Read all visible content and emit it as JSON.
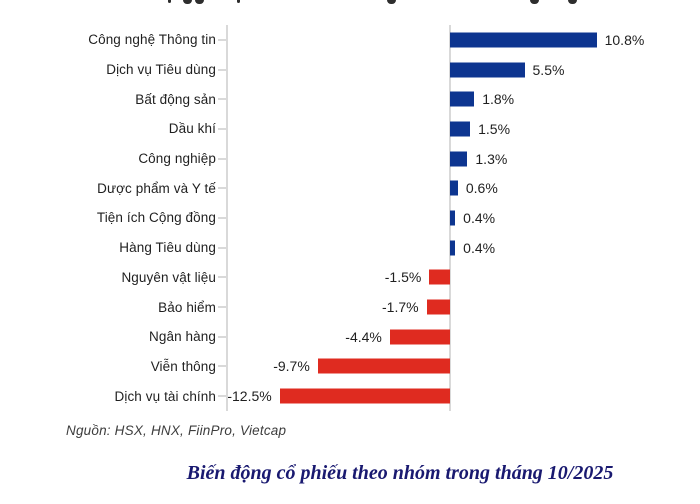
{
  "source": "Nguồn: HSX, HNX, FiinPro, Vietcap",
  "caption": "Biến động cổ phiếu theo nhóm trong tháng 10/2025",
  "chart_data": {
    "type": "bar",
    "orientation": "horizontal",
    "title": "",
    "xlabel": "",
    "ylabel": "",
    "unit": "%",
    "grid": false,
    "legend": "none",
    "value_label_position": "bar-end",
    "xlim": [
      -16.3,
      18.4
    ],
    "categories": [
      "Công nghệ Thông tin",
      "Dịch vụ Tiêu dùng",
      "Bất động sản",
      "Dầu khí",
      "Công nghiệp",
      "Dược phẩm và Y tế",
      "Tiện ích Cộng đồng",
      "Hàng Tiêu dùng",
      "Nguyên vật liệu",
      "Bảo hiểm",
      "Ngân hàng",
      "Viễn thông",
      "Dịch vụ tài chính"
    ],
    "values": [
      10.8,
      5.5,
      1.8,
      1.5,
      1.3,
      0.6,
      0.4,
      0.4,
      -1.5,
      -1.7,
      -4.4,
      -9.7,
      -12.5
    ],
    "value_labels": [
      "10.8%",
      "5.5%",
      "1.8%",
      "1.5%",
      "1.3%",
      "0.6%",
      "0.4%",
      "0.4%",
      "-1.5%",
      "-1.7%",
      "-4.4%",
      "-9.7%",
      "-12.5%"
    ],
    "positive_color": "#0D3590",
    "negative_color": "#DF2B20",
    "axis_color": "#D9D9D9"
  }
}
